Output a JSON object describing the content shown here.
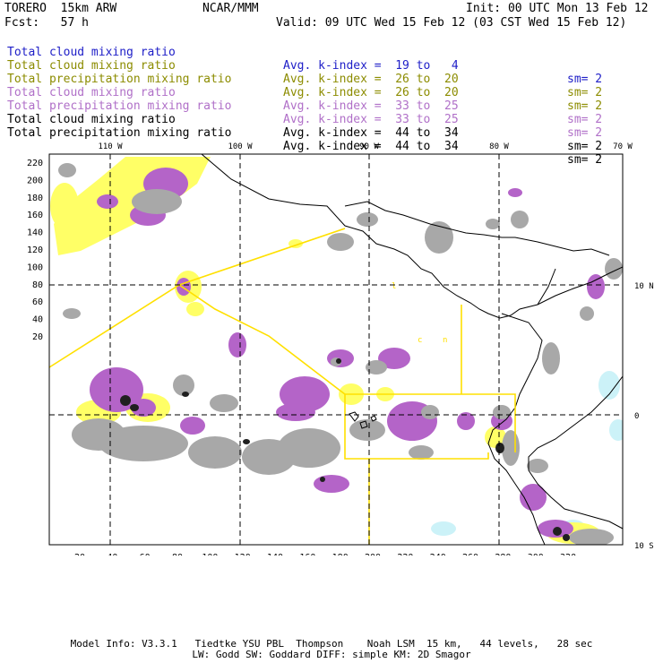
{
  "header": {
    "model": "TORERO  15km ARW",
    "org": "NCAR/MMM",
    "init": "Init: 00 UTC Mon 13 Feb 12",
    "fcst": "Fcst:   57 h",
    "valid": "Valid: 09 UTC Wed 15 Feb 12 (03 CST Wed 15 Feb 12)"
  },
  "legend": [
    {
      "label": "Total cloud mixing ratio",
      "avg": "Avg. k-index =  19 to   4",
      "sm": "sm= 2",
      "color": "#2020c8"
    },
    {
      "label": "Total cloud mixing ratio",
      "avg": "Avg. k-index =  26 to  20",
      "sm": "sm= 2",
      "color": "#8c8c00"
    },
    {
      "label": "Total precipitation mixing ratio",
      "avg": "Avg. k-index =  26 to  20",
      "sm": "sm= 2",
      "color": "#8c8c00"
    },
    {
      "label": "Total cloud mixing ratio",
      "avg": "Avg. k-index =  33 to  25",
      "sm": "sm= 2",
      "color": "#b070c8"
    },
    {
      "label": "Total precipitation mixing ratio",
      "avg": "Avg. k-index =  33 to  25",
      "sm": "sm= 2",
      "color": "#b070c8"
    },
    {
      "label": "Total cloud mixing ratio",
      "avg": "Avg. k-index =  44 to  34",
      "sm": "sm= 2",
      "color": "#000000"
    },
    {
      "label": "Total precipitation mixing ratio",
      "avg": "Avg. k-index =  44 to  34",
      "sm": "sm= 2",
      "color": "#000000"
    }
  ],
  "map": {
    "top_lon_labels": [
      "110 W",
      "100 W",
      "90 W",
      "80 W",
      "70 W"
    ],
    "right_lat_labels": [
      "10 N",
      "0",
      "10 S"
    ],
    "left_grid_labels": [
      "220",
      "200",
      "180",
      "160",
      "140",
      "120",
      "100",
      "80",
      "60",
      "40",
      "20"
    ],
    "bottom_grid_labels": [
      "20",
      "40",
      "60",
      "80",
      "100",
      "120",
      "140",
      "160",
      "180",
      "200",
      "220",
      "240",
      "260",
      "280",
      "300",
      "320"
    ],
    "colors": {
      "gray": "#a8a8a8",
      "purple": "#b464c8",
      "yellow": "#ffff66",
      "cyan": "#ccf2f8",
      "dark": "#202020",
      "domain_line": "#ffe000"
    }
  },
  "footer": {
    "line1": "Model Info: V3.3.1   Tiedtke YSU PBL  Thompson    Noah LSM  15 km,   44 levels,   28 sec",
    "line2": "LW: Godd SW: Goddard DIFF: simple KM: 2D Smagor"
  }
}
